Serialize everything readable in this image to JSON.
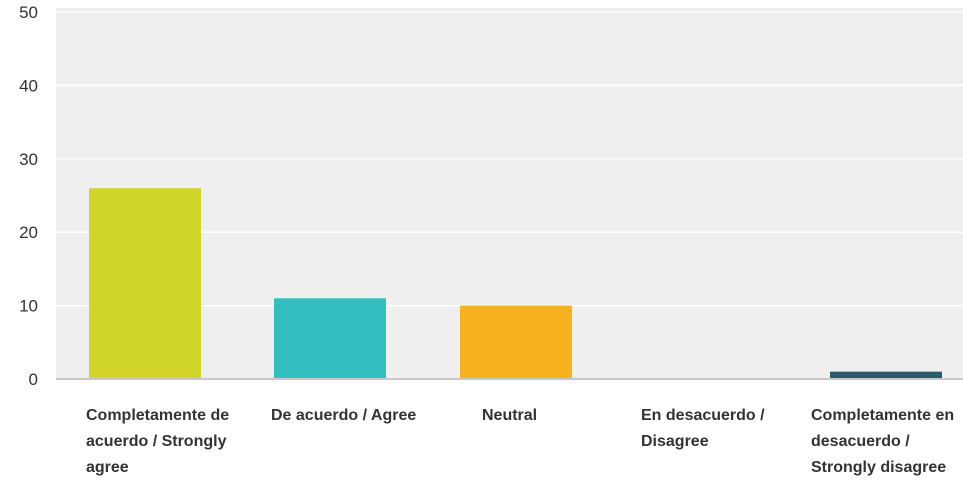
{
  "chart_data": {
    "type": "bar",
    "categories": [
      "Completamente de acuerdo / Strongly agree",
      "De acuerdo / Agree",
      "Neutral",
      "En desacuerdo / Disagree",
      "Completamente en desacuerdo / Strongly disagree"
    ],
    "values": [
      26,
      11,
      10,
      0,
      1
    ],
    "colors": [
      "#d1d52a",
      "#33bfc0",
      "#f7b11e",
      "#555555",
      "#2b5b67"
    ],
    "ylim": [
      0,
      50
    ],
    "yticks": [
      "0",
      "10",
      "20",
      "30",
      "40",
      "50"
    ],
    "grid": true,
    "background": "#efefef",
    "title": "",
    "xlabel": "",
    "ylabel": ""
  }
}
